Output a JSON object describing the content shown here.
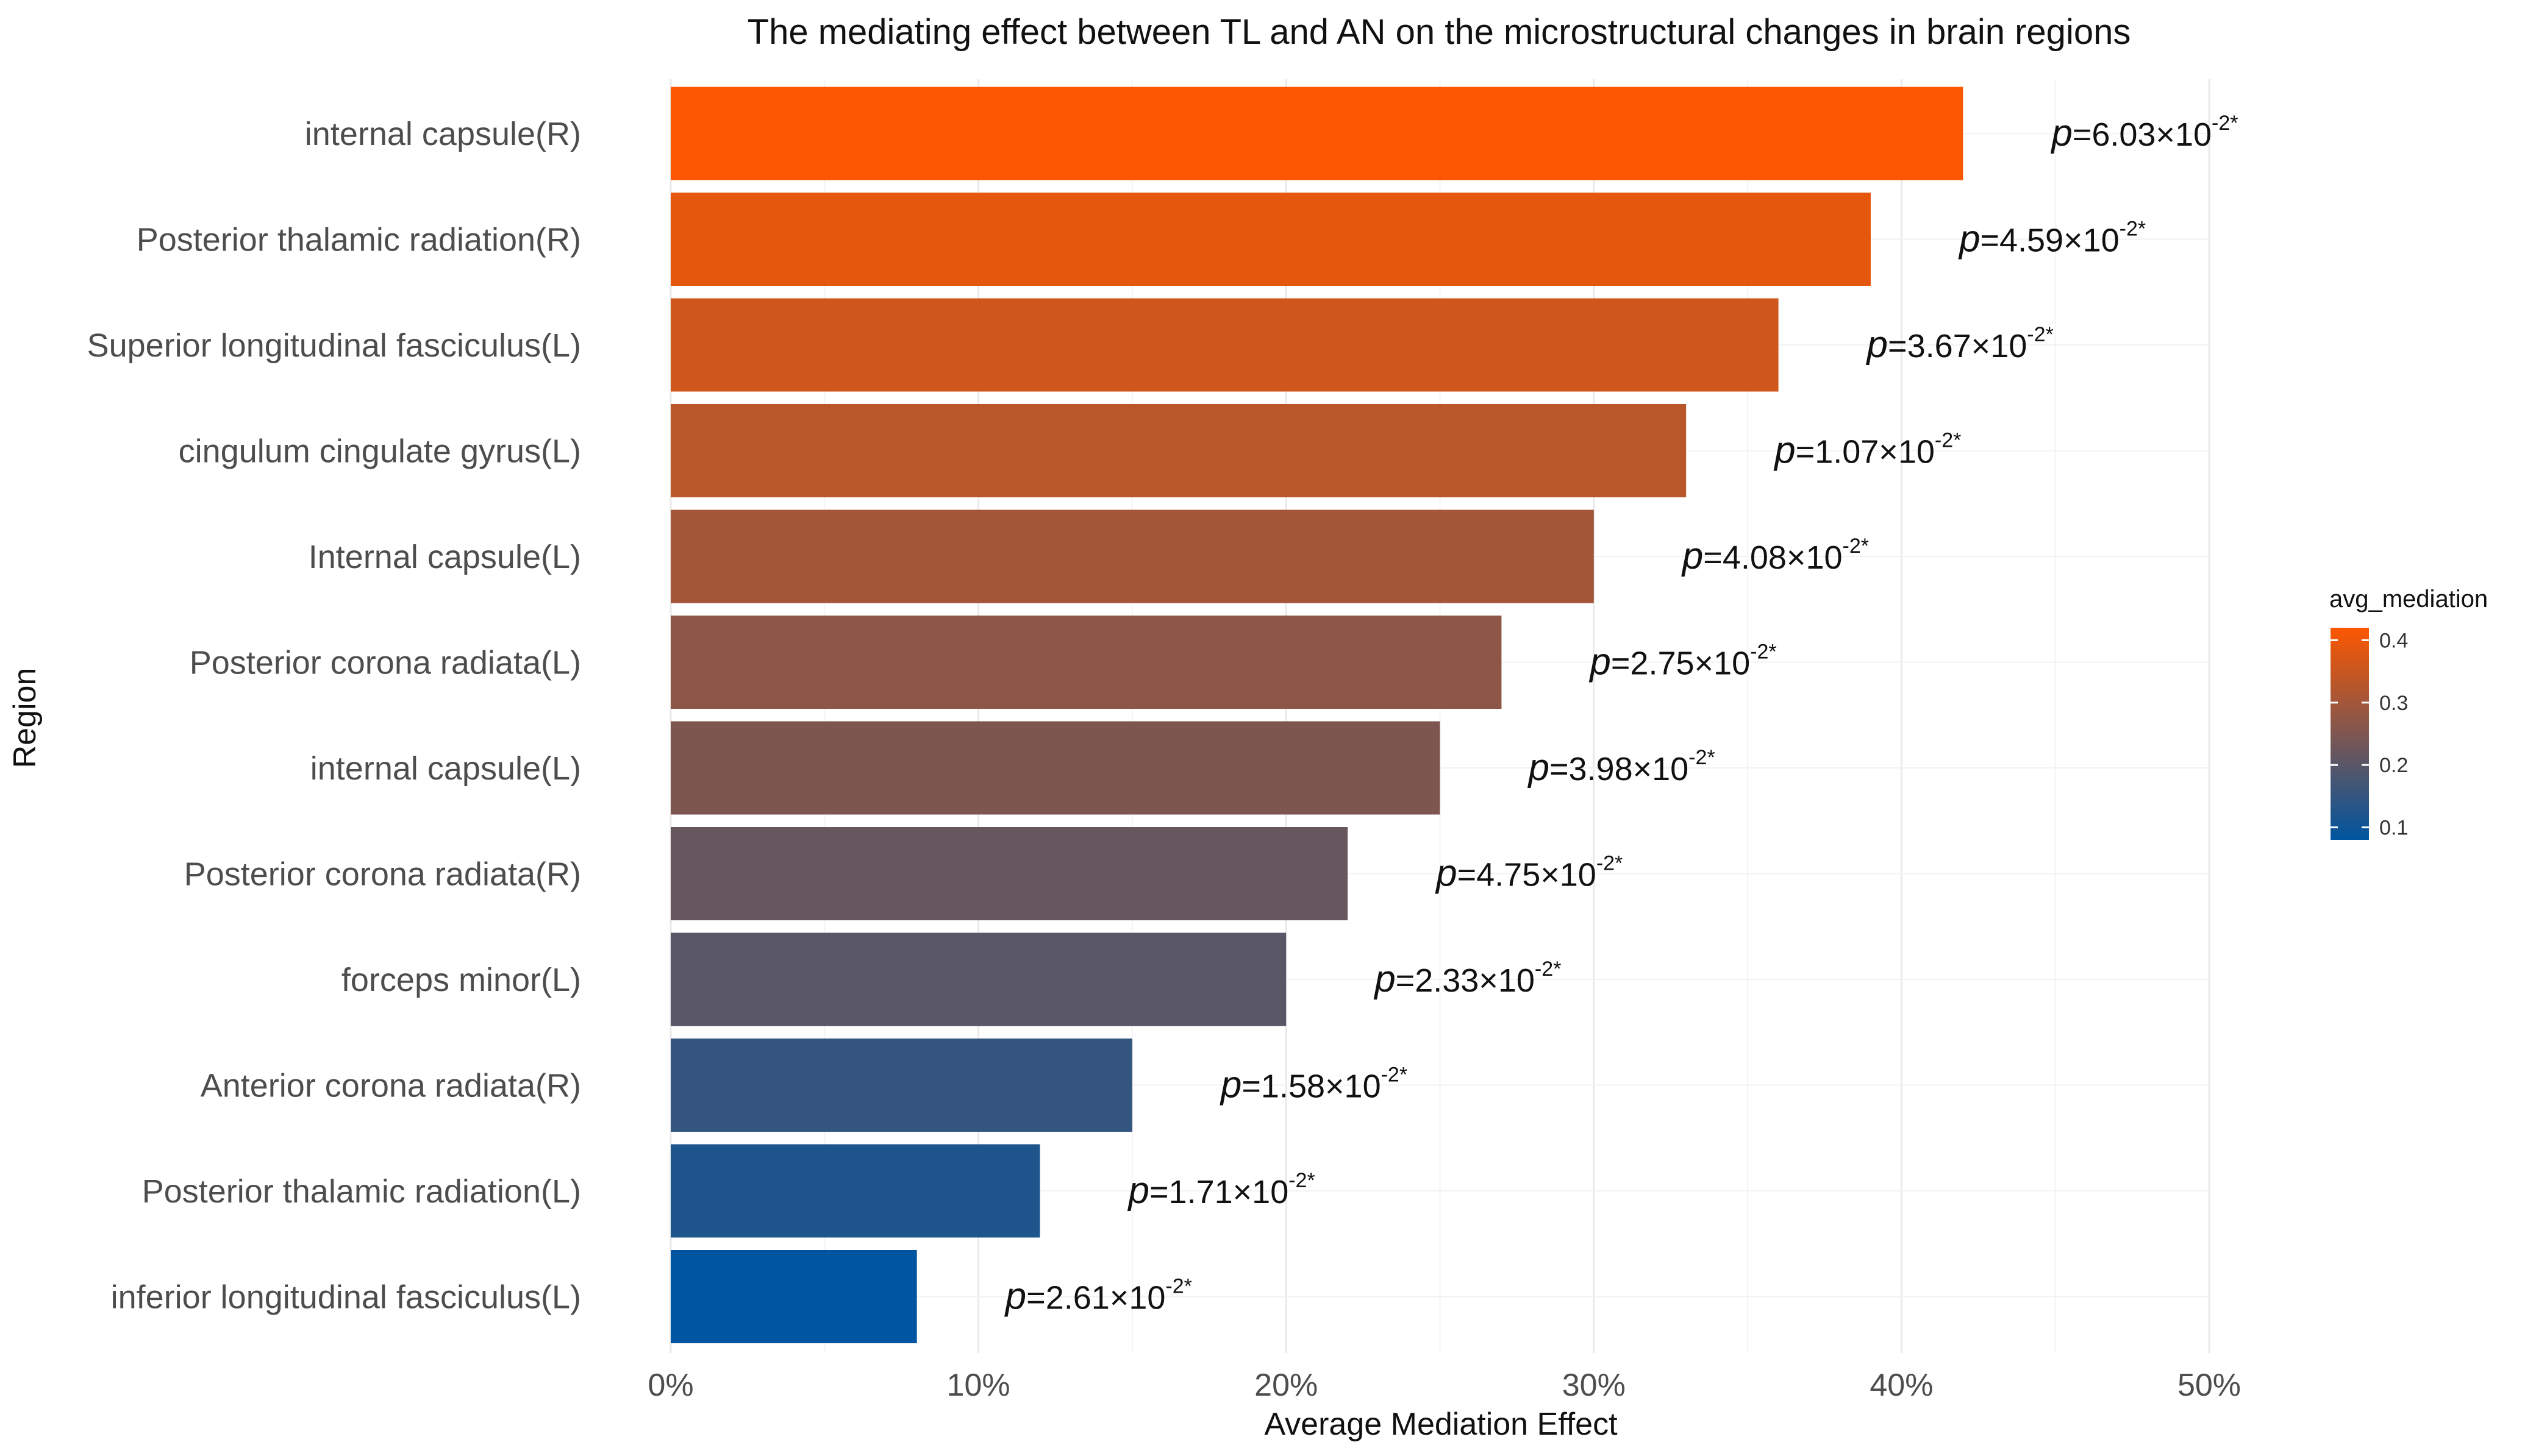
{
  "chart_data": {
    "type": "bar",
    "orientation": "horizontal",
    "title": "The mediating effect between TL and AN on the microstructural changes in brain regions",
    "xlabel": "Average Mediation Effect",
    "ylabel": "Region",
    "xlim": [
      0,
      0.5
    ],
    "x_ticks": [
      0,
      0.1,
      0.2,
      0.3,
      0.4,
      0.5
    ],
    "x_tick_labels": [
      "0%",
      "10%",
      "20%",
      "30%",
      "40%",
      "50%"
    ],
    "grid": true,
    "categories": [
      "internal capsule(R)",
      "Posterior thalamic radiation(R)",
      "Superior longitudinal fasciculus(L)",
      "cingulum cingulate gyrus(L)",
      "Internal capsule(L)",
      "Posterior corona radiata(L)",
      "internal capsule(L)",
      "Posterior corona radiata(R)",
      "forceps minor(L)",
      "Anterior corona radiata(R)",
      "Posterior thalamic radiation(L)",
      "inferior longitudinal fasciculus(L)"
    ],
    "values": [
      0.42,
      0.39,
      0.36,
      0.33,
      0.3,
      0.27,
      0.25,
      0.22,
      0.2,
      0.15,
      0.12,
      0.08
    ],
    "p_labels": [
      {
        "p": "p",
        "value": "=6.03×10",
        "exp": "-2*"
      },
      {
        "p": "p",
        "value": "=4.59×10",
        "exp": "-2*"
      },
      {
        "p": "p",
        "value": "=3.67×10",
        "exp": "-2*"
      },
      {
        "p": "p",
        "value": "=1.07×10",
        "exp": "-2*"
      },
      {
        "p": "p",
        "value": "=4.08×10",
        "exp": "-2*"
      },
      {
        "p": "p",
        "value": "=2.75×10",
        "exp": "-2*"
      },
      {
        "p": "p",
        "value": "=3.98×10",
        "exp": "-2*"
      },
      {
        "p": "p",
        "value": "=4.75×10",
        "exp": "-2*"
      },
      {
        "p": "p",
        "value": "=2.33×10",
        "exp": "-2*"
      },
      {
        "p": "p",
        "value": "=1.58×10",
        "exp": "-2*"
      },
      {
        "p": "p",
        "value": "=1.71×10",
        "exp": "-2*"
      },
      {
        "p": "p",
        "value": "=2.61×10",
        "exp": "-2*"
      }
    ],
    "color_scale": {
      "title": "avg_mediation",
      "low_color": "#0055a0",
      "high_color": "#fc5700",
      "domain": [
        0.08,
        0.42
      ],
      "ticks": [
        0.1,
        0.2,
        0.3,
        0.4
      ],
      "tick_labels": [
        "0.1",
        "0.2",
        "0.3",
        "0.4"
      ]
    },
    "legend_position": "right"
  }
}
